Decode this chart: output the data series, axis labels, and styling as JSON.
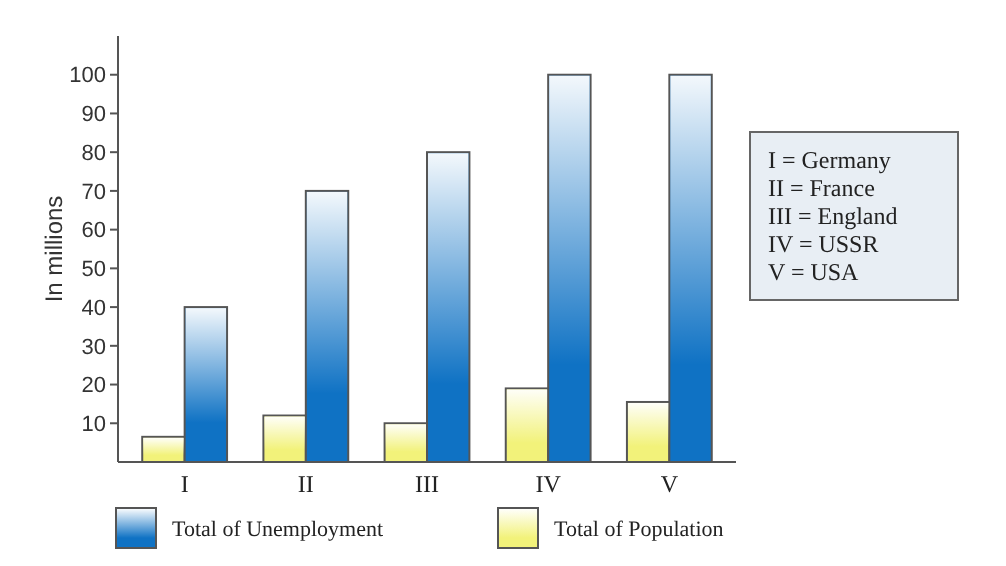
{
  "chart_data": {
    "type": "bar",
    "ylabel": "In millions",
    "categories": [
      "I",
      "II",
      "III",
      "IV",
      "V"
    ],
    "series": [
      {
        "name": "Total of Population",
        "color": "#f2f27a",
        "values": [
          6.5,
          12,
          10,
          19,
          15.5
        ]
      },
      {
        "name": "Total of Unemployment",
        "color": "#0f72c4",
        "values": [
          40,
          70,
          80,
          100,
          100
        ]
      }
    ],
    "ylim": [
      0,
      110
    ],
    "yticks": [
      10,
      20,
      30,
      40,
      50,
      60,
      70,
      80,
      90,
      100
    ],
    "grid": false,
    "legend": "bottom",
    "annotations": [
      "I = Germany",
      "II = France",
      "III = England",
      "IV = USSR",
      "V = USA"
    ]
  }
}
